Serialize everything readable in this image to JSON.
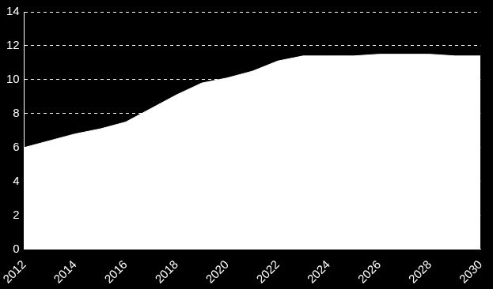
{
  "chart_data": {
    "type": "area",
    "x": [
      2012,
      2013,
      2014,
      2015,
      2016,
      2017,
      2018,
      2019,
      2020,
      2021,
      2022,
      2023,
      2024,
      2025,
      2026,
      2027,
      2028,
      2029,
      2030
    ],
    "values": [
      6.0,
      6.4,
      6.8,
      7.1,
      7.5,
      8.3,
      9.1,
      9.8,
      10.1,
      10.5,
      11.1,
      11.4,
      11.4,
      11.4,
      11.5,
      11.5,
      11.5,
      11.4,
      11.4
    ],
    "color": "#ffffff",
    "xlim": [
      2012,
      2030
    ],
    "xticks": [
      2012,
      2014,
      2016,
      2018,
      2020,
      2022,
      2024,
      2026,
      2028,
      2030
    ],
    "ylim": [
      0,
      14
    ],
    "yticks": [
      0,
      2,
      4,
      6,
      8,
      10,
      12,
      14
    ],
    "grid": true
  }
}
